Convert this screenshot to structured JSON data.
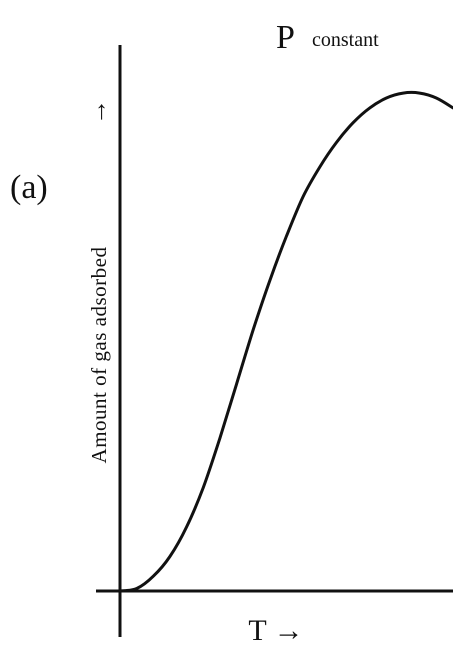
{
  "chart_data": {
    "type": "line",
    "panel_label": "(a)",
    "title": "P",
    "subtitle": "constant",
    "xlabel": "T →",
    "ylabel": "Amount of gas adsorbed",
    "y_arrow": "→",
    "grid": false,
    "legend": "none",
    "xlim": [
      0,
      1
    ],
    "ylim": [
      0,
      1
    ],
    "series": [
      {
        "values": [
          {
            "x": 0.0,
            "y": 0.0
          },
          {
            "x": 0.05,
            "y": 0.005
          },
          {
            "x": 0.1,
            "y": 0.03
          },
          {
            "x": 0.15,
            "y": 0.07
          },
          {
            "x": 0.2,
            "y": 0.13
          },
          {
            "x": 0.25,
            "y": 0.21
          },
          {
            "x": 0.3,
            "y": 0.31
          },
          {
            "x": 0.35,
            "y": 0.42
          },
          {
            "x": 0.4,
            "y": 0.53
          },
          {
            "x": 0.45,
            "y": 0.63
          },
          {
            "x": 0.5,
            "y": 0.72
          },
          {
            "x": 0.55,
            "y": 0.8
          },
          {
            "x": 0.6,
            "y": 0.86
          },
          {
            "x": 0.65,
            "y": 0.91
          },
          {
            "x": 0.7,
            "y": 0.95
          },
          {
            "x": 0.75,
            "y": 0.98
          },
          {
            "x": 0.8,
            "y": 1.0
          },
          {
            "x": 0.85,
            "y": 1.01
          },
          {
            "x": 0.9,
            "y": 1.01
          },
          {
            "x": 0.95,
            "y": 1.0
          },
          {
            "x": 1.0,
            "y": 0.98
          }
        ]
      }
    ]
  },
  "colors": {
    "ink": "#111111",
    "background": "#ffffff"
  }
}
